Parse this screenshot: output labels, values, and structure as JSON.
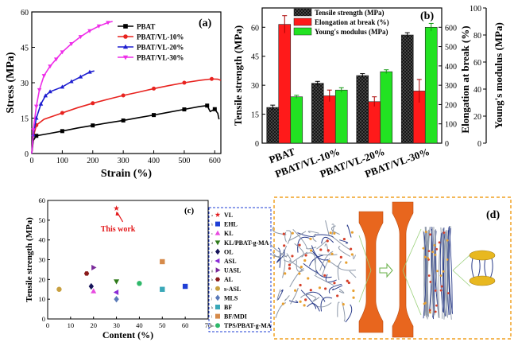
{
  "panel_labels": {
    "a": "(a)",
    "b": "(b)",
    "c": "(c)",
    "d": "(d)"
  },
  "chart_data": [
    {
      "panel": "a",
      "type": "line",
      "xlabel": "Strain (%)",
      "ylabel": "Stress (MPa)",
      "xlim": [
        0,
        620
      ],
      "ylim": [
        0,
        60
      ],
      "xticks": [
        0,
        100,
        200,
        300,
        400,
        500,
        600
      ],
      "yticks": [
        0,
        15,
        30,
        45,
        60
      ],
      "legend_position": "top-right",
      "series": [
        {
          "name": "PBAT",
          "color": "#000000",
          "marker": "square",
          "points": [
            [
              0,
              0
            ],
            [
              5,
              5.5
            ],
            [
              15,
              7.5
            ],
            [
              50,
              8.3
            ],
            [
              100,
              9.5
            ],
            [
              150,
              10.8
            ],
            [
              200,
              11.9
            ],
            [
              250,
              13
            ],
            [
              300,
              14
            ],
            [
              350,
              15.2
            ],
            [
              400,
              16.3
            ],
            [
              450,
              17.5
            ],
            [
              500,
              18.7
            ],
            [
              550,
              19.9
            ],
            [
              575,
              20.3
            ],
            [
              585,
              17.8
            ],
            [
              600,
              18.8
            ],
            [
              610,
              17
            ],
            [
              614,
              14.5
            ]
          ]
        },
        {
          "name": "PBAT/VL-10%",
          "color": "#e8231f",
          "marker": "circle",
          "points": [
            [
              0,
              0
            ],
            [
              5,
              7
            ],
            [
              15,
              12
            ],
            [
              40,
              14.5
            ],
            [
              100,
              17.2
            ],
            [
              150,
              19.4
            ],
            [
              200,
              21.3
            ],
            [
              250,
              23
            ],
            [
              300,
              24.6
            ],
            [
              350,
              26
            ],
            [
              400,
              27.5
            ],
            [
              450,
              28.8
            ],
            [
              500,
              30
            ],
            [
              550,
              31
            ],
            [
              590,
              31.6
            ],
            [
              610,
              31.5
            ],
            [
              620,
              31
            ]
          ]
        },
        {
          "name": "PBAT/VL-20%",
          "color": "#1e1ed0",
          "marker": "triangle",
          "points": [
            [
              0,
              0
            ],
            [
              5,
              8
            ],
            [
              15,
              15
            ],
            [
              30,
              21
            ],
            [
              45,
              24.5
            ],
            [
              60,
              26.2
            ],
            [
              100,
              28.2
            ],
            [
              130,
              30.5
            ],
            [
              160,
              32.5
            ],
            [
              190,
              34.5
            ],
            [
              205,
              35
            ]
          ]
        },
        {
          "name": "PBAT/VL-30%",
          "color": "#ee2ee8",
          "marker": "triangle-down",
          "points": [
            [
              0,
              0
            ],
            [
              5,
              10
            ],
            [
              15,
              20
            ],
            [
              25,
              27
            ],
            [
              40,
              33
            ],
            [
              60,
              37
            ],
            [
              80,
              40
            ],
            [
              100,
              43
            ],
            [
              130,
              46.5
            ],
            [
              160,
              49.5
            ],
            [
              190,
              52
            ],
            [
              220,
              54
            ],
            [
              250,
              55.5
            ],
            [
              265,
              56
            ]
          ]
        }
      ]
    },
    {
      "panel": "b",
      "type": "bar",
      "ylabel": "Tensile strength (MPa)",
      "y2label": "Elongation at break (%)",
      "y3label": "Young's modulus (MPa)",
      "ylim": [
        0,
        70
      ],
      "y2lim": [
        0,
        700
      ],
      "y3lim": [
        0,
        100
      ],
      "yticks": [
        0,
        15,
        30,
        45,
        60
      ],
      "y2ticks": [
        0,
        100,
        200,
        300,
        400,
        500,
        600
      ],
      "y3ticks": [
        0,
        20,
        40,
        60,
        80,
        100
      ],
      "legend_position": "top-center",
      "categories": [
        "PBAT",
        "PBAT/VL-10%",
        "PBAT/VL-20%",
        "PBAT/VL-30%"
      ],
      "series": [
        {
          "name": "Tensile strength (MPa)",
          "axis": "left",
          "color": "#222222",
          "pattern": "crosshatch",
          "values": [
            18.5,
            31,
            35,
            56
          ],
          "errors": [
            1.2,
            1,
            1,
            1.2
          ]
        },
        {
          "name": "Elongation at break (%)",
          "axis": "right",
          "color": "#ff1a1a",
          "values": [
            615,
            245,
            215,
            270
          ],
          "errors": [
            45,
            30,
            25,
            60
          ]
        },
        {
          "name": "Young's modulus (MPa)",
          "axis": "right",
          "color": "#22e222",
          "values": [
            240,
            275,
            370,
            600
          ],
          "errors": [
            8,
            12,
            10,
            20
          ]
        }
      ]
    },
    {
      "panel": "c",
      "type": "scatter",
      "xlabel": "Content (%)",
      "ylabel": "Tensile strength (MPa)",
      "xlim": [
        0,
        70
      ],
      "ylim": [
        0,
        60
      ],
      "xticks": [
        0,
        10,
        20,
        30,
        40,
        50,
        60,
        70
      ],
      "yticks": [
        0,
        10,
        20,
        30,
        40,
        50,
        60
      ],
      "annotation": "This work",
      "legend_position": "right",
      "points": [
        {
          "name": "VL",
          "letter": "a",
          "x": 30,
          "y": 56,
          "color": "#e31a1c",
          "marker": "star"
        },
        {
          "name": "EHL",
          "letter": "b",
          "x": 60,
          "y": 16.5,
          "color": "#1f3fd6",
          "marker": "square"
        },
        {
          "name": "KL",
          "letter": "c",
          "x": 20,
          "y": 14,
          "color": "#e84ce0",
          "marker": "triangle"
        },
        {
          "name": "KL/PBAT-g-MA",
          "letter": "d",
          "x": 30,
          "y": 19,
          "color": "#2f7a1a",
          "marker": "triangle-down"
        },
        {
          "name": "OL",
          "letter": "e",
          "x": 19,
          "y": 16.5,
          "color": "#16145a",
          "marker": "diamond"
        },
        {
          "name": "ASL",
          "letter": "f",
          "x": 30,
          "y": 13.5,
          "color": "#8a2bd6",
          "marker": "triangle-left"
        },
        {
          "name": "UASL",
          "letter": "g",
          "x": 20,
          "y": 26,
          "color": "#7a2a9a",
          "marker": "triangle-right"
        },
        {
          "name": "AL",
          "letter": "h",
          "x": 17,
          "y": 23,
          "color": "#8a1a1a",
          "marker": "hexagon"
        },
        {
          "name": "s-ASL",
          "letter": "i",
          "x": 5,
          "y": 15,
          "color": "#c8a040",
          "marker": "circle"
        },
        {
          "name": "MLS",
          "letter": "j",
          "x": 30,
          "y": 10,
          "color": "#5a7ab8",
          "marker": "diamond"
        },
        {
          "name": "BF",
          "letter": "k",
          "x": 50,
          "y": 15,
          "color": "#3aa8b8",
          "marker": "square"
        },
        {
          "name": "BF/MDI",
          "letter": "l",
          "x": 50,
          "y": 29,
          "color": "#d68a4a",
          "marker": "square"
        },
        {
          "name": "TPS/PBAT-g-MA",
          "letter": "m",
          "x": 40,
          "y": 18,
          "color": "#2fb86a",
          "marker": "circle"
        }
      ]
    }
  ],
  "colors": {
    "orange": "#e8661e",
    "dashed_border": "#f0a020",
    "grey_fiber": "#8c97a8",
    "blue_fiber": "#2a3c8a",
    "gold": "#e8b820"
  }
}
